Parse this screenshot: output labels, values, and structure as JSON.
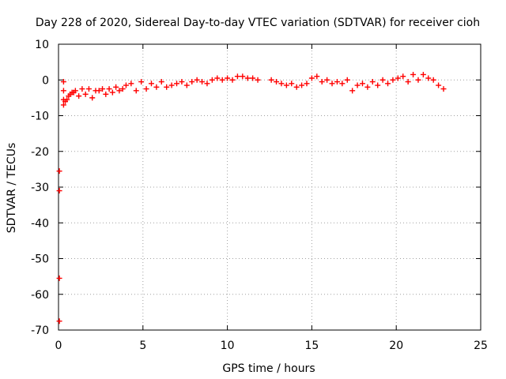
{
  "chart_data": {
    "type": "scatter",
    "title": "Day 228 of 2020, Sidereal Day-to-day VTEC variation (SDTVAR) for receiver cioh",
    "xlabel": "GPS time / hours",
    "ylabel": "SDTVAR / TECUs",
    "xlim": [
      0,
      25
    ],
    "ylim": [
      -70,
      10
    ],
    "xticks": [
      "0",
      "5",
      "10",
      "15",
      "20",
      "25"
    ],
    "yticks": [
      "10",
      "0",
      "-10",
      "-20",
      "-30",
      "-40",
      "-50",
      "-60",
      "-70"
    ],
    "grid": true,
    "marker": "plus",
    "color": "#ff0000",
    "series": [
      {
        "x": [
          0.05,
          0.05,
          0.05,
          0.05,
          0.3,
          0.3,
          0.3,
          0.3,
          0.4,
          0.5,
          0.6,
          0.7,
          0.8,
          0.9,
          1.0,
          1.2,
          1.4,
          1.6,
          1.8,
          2.0,
          2.2,
          2.4,
          2.6,
          2.8,
          3.0,
          3.2,
          3.4,
          3.6,
          3.8,
          4.0,
          4.3,
          4.6,
          4.9,
          5.2,
          5.5,
          5.8,
          6.1,
          6.4,
          6.7,
          7.0,
          7.3,
          7.6,
          7.9,
          8.2,
          8.5,
          8.8,
          9.1,
          9.4,
          9.7,
          10.0,
          10.3,
          10.6,
          10.9,
          11.2,
          11.5,
          11.8,
          12.6,
          12.9,
          13.2,
          13.5,
          13.8,
          14.1,
          14.4,
          14.7,
          15.0,
          15.3,
          15.6,
          15.9,
          16.2,
          16.5,
          16.8,
          17.1,
          17.4,
          17.7,
          18.0,
          18.3,
          18.6,
          18.9,
          19.2,
          19.5,
          19.8,
          20.1,
          20.4,
          20.7,
          21.0,
          21.3,
          21.6,
          21.9,
          22.2,
          22.5,
          22.8
        ],
        "y": [
          -25.5,
          -31.0,
          -55.5,
          -67.5,
          -0.5,
          -3.0,
          -5.5,
          -7.0,
          -6.0,
          -5.5,
          -4.5,
          -4.0,
          -3.5,
          -3.5,
          -3.0,
          -4.5,
          -2.5,
          -4.0,
          -2.5,
          -5.0,
          -3.0,
          -3.0,
          -2.5,
          -4.0,
          -2.5,
          -3.5,
          -2.0,
          -3.0,
          -2.5,
          -1.5,
          -1.0,
          -3.0,
          -0.5,
          -2.5,
          -1.0,
          -2.0,
          -0.5,
          -2.0,
          -1.5,
          -1.0,
          -0.5,
          -1.5,
          -0.5,
          0.0,
          -0.5,
          -1.0,
          0.0,
          0.5,
          0.0,
          0.5,
          0.0,
          1.0,
          1.0,
          0.5,
          0.5,
          0.0,
          0.0,
          -0.5,
          -1.0,
          -1.5,
          -1.0,
          -2.0,
          -1.5,
          -1.0,
          0.5,
          1.0,
          -0.5,
          0.0,
          -1.0,
          -0.5,
          -1.0,
          0.0,
          -3.0,
          -1.5,
          -1.0,
          -2.0,
          -0.5,
          -1.5,
          0.0,
          -1.0,
          0.0,
          0.5,
          1.0,
          -0.5,
          1.5,
          0.0,
          1.5,
          0.5,
          0.0,
          -1.5,
          -2.5
        ]
      }
    ]
  }
}
